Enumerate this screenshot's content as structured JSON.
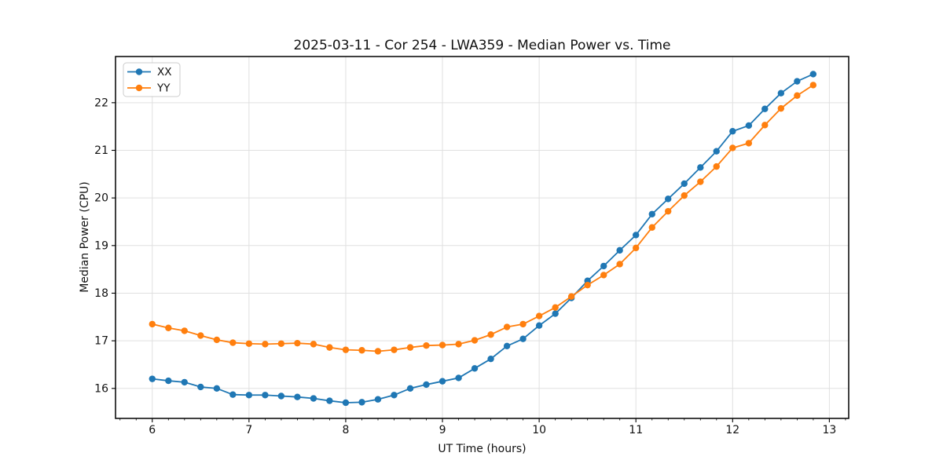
{
  "figure": {
    "background": "#ffffff"
  },
  "chart_data": {
    "type": "line",
    "title": "2025-03-11 - Cor 254 - LWA359 - Median Power vs. Time",
    "xlabel": "UT Time (hours)",
    "ylabel": "Median Power (CPU)",
    "xlim": [
      5.62,
      13.2
    ],
    "ylim": [
      15.37,
      22.97
    ],
    "x_ticks": [
      6,
      7,
      8,
      9,
      10,
      11,
      12,
      13
    ],
    "y_ticks": [
      16,
      17,
      18,
      19,
      20,
      21,
      22
    ],
    "x_minor_step": 0.16667,
    "grid": true,
    "legend_position": "upper-left",
    "x": [
      6.0,
      6.167,
      6.333,
      6.5,
      6.667,
      6.833,
      7.0,
      7.167,
      7.333,
      7.5,
      7.667,
      7.833,
      8.0,
      8.167,
      8.333,
      8.5,
      8.667,
      8.833,
      9.0,
      9.167,
      9.333,
      9.5,
      9.667,
      9.833,
      10.0,
      10.167,
      10.333,
      10.5,
      10.667,
      10.833,
      11.0,
      11.167,
      11.333,
      11.5,
      11.667,
      11.833,
      12.0,
      12.167,
      12.333,
      12.5,
      12.667,
      12.833
    ],
    "series": [
      {
        "name": "XX",
        "color": "#1f77b4",
        "marker": "circle",
        "values": [
          16.2,
          16.16,
          16.13,
          16.03,
          16.0,
          15.87,
          15.86,
          15.86,
          15.84,
          15.82,
          15.79,
          15.74,
          15.7,
          15.71,
          15.77,
          15.86,
          16.0,
          16.08,
          16.15,
          16.22,
          16.42,
          16.62,
          16.89,
          17.04,
          17.32,
          17.57,
          17.9,
          18.26,
          18.57,
          18.9,
          19.22,
          19.66,
          19.98,
          20.3,
          20.64,
          20.98,
          21.4,
          21.52,
          21.87,
          22.2,
          22.45,
          22.6
        ]
      },
      {
        "name": "YY",
        "color": "#ff7f0e",
        "marker": "circle",
        "values": [
          17.35,
          17.27,
          17.21,
          17.11,
          17.02,
          16.96,
          16.94,
          16.93,
          16.94,
          16.95,
          16.93,
          16.86,
          16.81,
          16.8,
          16.78,
          16.81,
          16.86,
          16.9,
          16.91,
          16.93,
          17.01,
          17.13,
          17.29,
          17.35,
          17.52,
          17.7,
          17.93,
          18.17,
          18.38,
          18.61,
          18.95,
          19.38,
          19.72,
          20.05,
          20.34,
          20.66,
          21.05,
          21.15,
          21.53,
          21.88,
          22.15,
          22.37
        ]
      }
    ],
    "style": {
      "grid_color": "#e0e0e0",
      "spine_color": "#000000",
      "tick_color": "#000000",
      "text_color": "#111111",
      "legend_border": "#cccccc",
      "legend_bg": "#ffffff"
    }
  }
}
